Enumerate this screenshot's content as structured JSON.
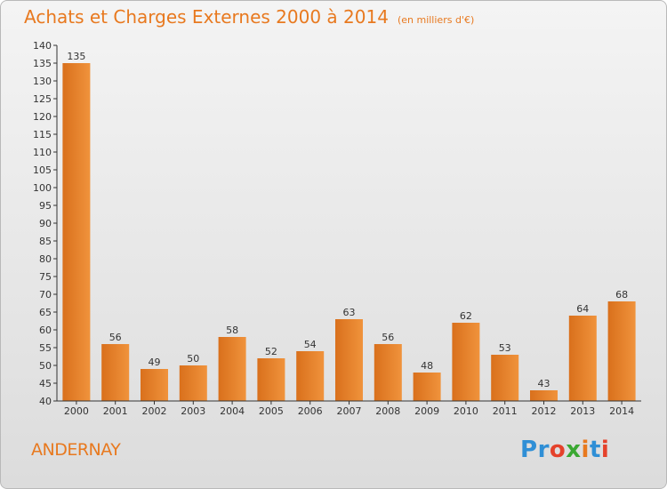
{
  "header": {
    "title": "Achats et Charges Externes 2000 à 2014",
    "unit": "(en milliers d'€)"
  },
  "location": "ANDERNAY",
  "logo": {
    "letters": [
      "P",
      "r",
      "o",
      "x",
      "i",
      "t",
      "i"
    ],
    "colors": [
      "#2f8fd6",
      "#2f8fd6",
      "#e5422b",
      "#3aa832",
      "#e8791f",
      "#2f8fd6",
      "#e5422b"
    ]
  },
  "chart_data": {
    "type": "bar",
    "categories": [
      "2000",
      "2001",
      "2002",
      "2003",
      "2004",
      "2005",
      "2006",
      "2007",
      "2008",
      "2009",
      "2010",
      "2011",
      "2012",
      "2013",
      "2014"
    ],
    "values": [
      135,
      56,
      49,
      50,
      58,
      52,
      54,
      63,
      56,
      48,
      62,
      53,
      43,
      64,
      68
    ],
    "ylim": [
      40,
      140
    ],
    "ytick_step": 5,
    "bar_color": "#f0933c",
    "bar_color_dark": "#d9701c",
    "axis_color": "#333333",
    "grid": false
  }
}
